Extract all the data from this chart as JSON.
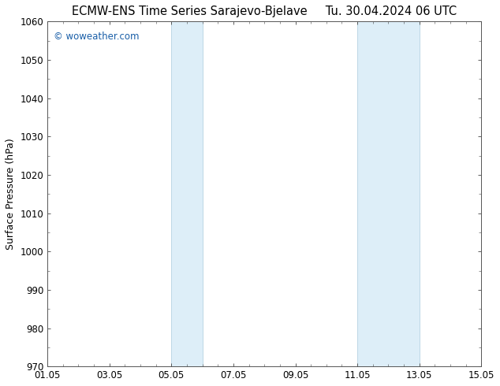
{
  "title_left": "ECMW-ENS Time Series Sarajevo-Bjelave",
  "title_right": "Tu. 30.04.2024 06 UTC",
  "ylabel": "Surface Pressure (hPa)",
  "ylim": [
    970,
    1060
  ],
  "yticks": [
    970,
    980,
    990,
    1000,
    1010,
    1020,
    1030,
    1040,
    1050,
    1060
  ],
  "xtick_labels": [
    "01.05",
    "03.05",
    "05.05",
    "07.05",
    "09.05",
    "11.05",
    "13.05",
    "15.05"
  ],
  "xtick_positions": [
    0,
    2,
    4,
    6,
    8,
    10,
    12,
    14
  ],
  "x_total_days": 14,
  "shaded_bands": [
    {
      "x_start": 4,
      "x_end": 5,
      "border_color": "#aaccdd"
    },
    {
      "x_start": 10,
      "x_end": 12,
      "border_color": "#aaccdd"
    }
  ],
  "shade_color": "#ddeef8",
  "background_color": "#ffffff",
  "plot_bg_color": "#ffffff",
  "border_color": "#555555",
  "watermark_text": "© woweather.com",
  "watermark_color": "#1a5fa8",
  "title_fontsize": 10.5,
  "tick_fontsize": 8.5,
  "ylabel_fontsize": 9
}
